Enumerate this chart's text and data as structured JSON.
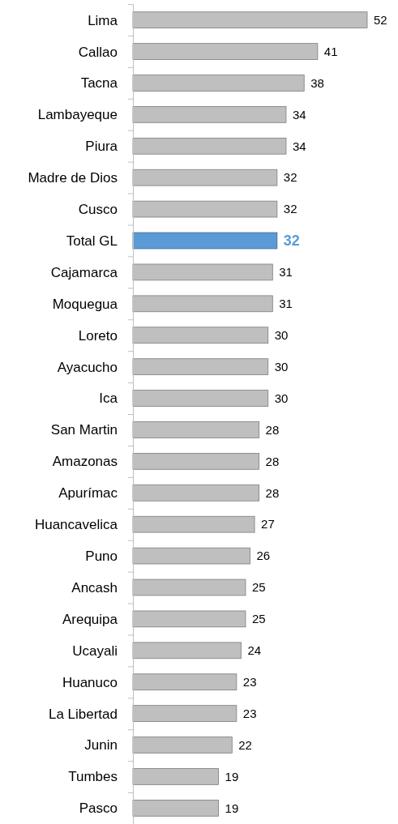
{
  "chart_data": {
    "type": "bar",
    "orientation": "horizontal",
    "categories": [
      "Lima",
      "Callao",
      "Tacna",
      "Lambayeque",
      "Piura",
      "Madre de Dios",
      "Cusco",
      "Total GL",
      "Cajamarca",
      "Moquegua",
      "Loreto",
      "Ayacucho",
      "Ica",
      "San Martin",
      "Amazonas",
      "Apurímac",
      "Huancavelica",
      "Puno",
      "Ancash",
      "Arequipa",
      "Ucayali",
      "Huanuco",
      "La Libertad",
      "Junin",
      "Tumbes",
      "Pasco"
    ],
    "values": [
      52,
      41,
      38,
      34,
      34,
      32,
      32,
      32,
      31,
      31,
      30,
      30,
      30,
      28,
      28,
      28,
      27,
      26,
      25,
      25,
      24,
      23,
      23,
      22,
      19,
      19
    ],
    "colors": [
      "#bfbfbf",
      "#bfbfbf",
      "#bfbfbf",
      "#bfbfbf",
      "#bfbfbf",
      "#bfbfbf",
      "#bfbfbf",
      "#5b9bd5",
      "#bfbfbf",
      "#bfbfbf",
      "#bfbfbf",
      "#bfbfbf",
      "#bfbfbf",
      "#bfbfbf",
      "#bfbfbf",
      "#bfbfbf",
      "#bfbfbf",
      "#bfbfbf",
      "#bfbfbf",
      "#bfbfbf",
      "#bfbfbf",
      "#bfbfbf",
      "#bfbfbf",
      "#bfbfbf",
      "#bfbfbf",
      "#bfbfbf"
    ],
    "xlim": [
      0,
      52
    ],
    "data_labels": true,
    "tick_labels": "y"
  }
}
